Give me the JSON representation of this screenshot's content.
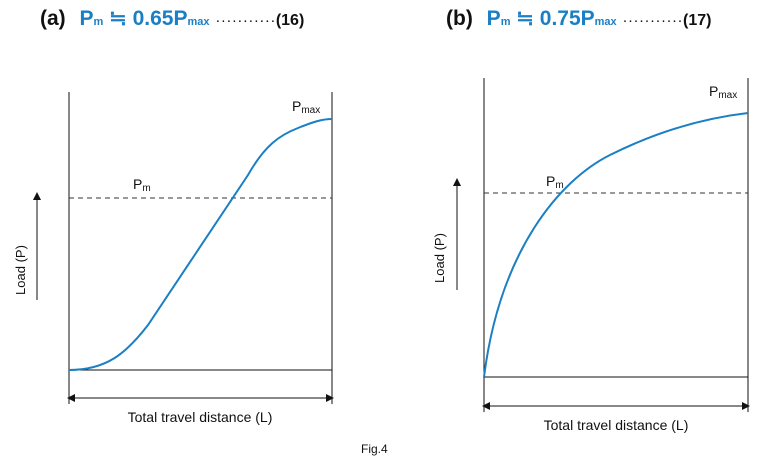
{
  "figure_label": "Fig.4",
  "panels": [
    {
      "letter": "(a)",
      "formula_p": "P",
      "formula_m": "m",
      "formula_op": " ≒ ",
      "formula_value": "0.65P",
      "formula_max": "max",
      "dots": "···········",
      "equation_number": "(16)",
      "y_label": "Load (P)",
      "x_label": "Total travel distance (L)",
      "pm_label": "Pm",
      "pmax_label": "Pmax",
      "curve_shape": "s-curve",
      "pm_ratio": 0.65,
      "line_color": "#1a7fc4"
    },
    {
      "letter": "(b)",
      "formula_p": "P",
      "formula_m": "m",
      "formula_op": " ≒ ",
      "formula_value": "0.75P",
      "formula_max": "max",
      "dots": "···········",
      "equation_number": "(17)",
      "y_label": "Load (P)",
      "x_label": "Total travel distance (L)",
      "pm_label": "Pm",
      "pmax_label": "Pmax",
      "curve_shape": "concave",
      "pm_ratio": 0.75,
      "line_color": "#1a7fc4"
    }
  ]
}
